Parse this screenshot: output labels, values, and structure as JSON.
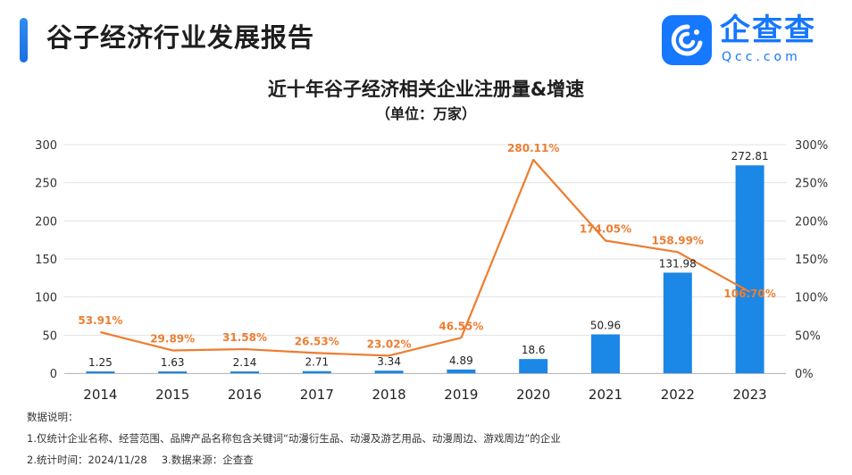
{
  "header": {
    "report_title": "谷子经济行业发展报告",
    "logo_name": "企查查",
    "logo_domain": "Qcc.com"
  },
  "chart_data": {
    "type": "bar",
    "title": "近十年谷子经济相关企业注册量&增速",
    "unit": "（单位：万家）",
    "categories": [
      "2014",
      "2015",
      "2016",
      "2017",
      "2018",
      "2019",
      "2020",
      "2021",
      "2022",
      "2023"
    ],
    "series": [
      {
        "type": "bar",
        "axis": "left",
        "values": [
          1.25,
          1.63,
          2.14,
          2.71,
          3.34,
          4.89,
          18.6,
          50.96,
          131.98,
          272.81
        ],
        "labels": [
          "1.25",
          "1.63",
          "2.14",
          "2.71",
          "3.34",
          "4.89",
          "18.6",
          "50.96",
          "131.98",
          "272.81"
        ],
        "color": "#1b87e6"
      },
      {
        "type": "line",
        "axis": "right",
        "values": [
          53.91,
          29.89,
          31.58,
          26.53,
          23.02,
          46.55,
          280.11,
          174.05,
          158.99,
          106.7
        ],
        "labels": [
          "53.91%",
          "29.89%",
          "31.58%",
          "26.53%",
          "23.02%",
          "46.55%",
          "280.11%",
          "174.05%",
          "158.99%",
          "106.70%"
        ],
        "color": "#ed7d31"
      }
    ],
    "y_left": {
      "min": 0,
      "max": 300,
      "ticks": [
        "0",
        "50",
        "100",
        "150",
        "200",
        "250",
        "300"
      ]
    },
    "y_right": {
      "min": 0,
      "max": 300,
      "ticks": [
        "0%",
        "50%",
        "100%",
        "150%",
        "200%",
        "250%",
        "300%"
      ]
    },
    "grid": true,
    "legend": "none"
  },
  "notes": {
    "heading": "数据说明：",
    "note1": "1.仅统计企业名称、经营范围、品牌产品名称包含关键词“动漫衍生品、动漫及游艺用品、动漫周边、游戏周边”的企业",
    "note2": "2.统计时间：2024/11/28",
    "note3": "3.数据来源：企查查"
  }
}
